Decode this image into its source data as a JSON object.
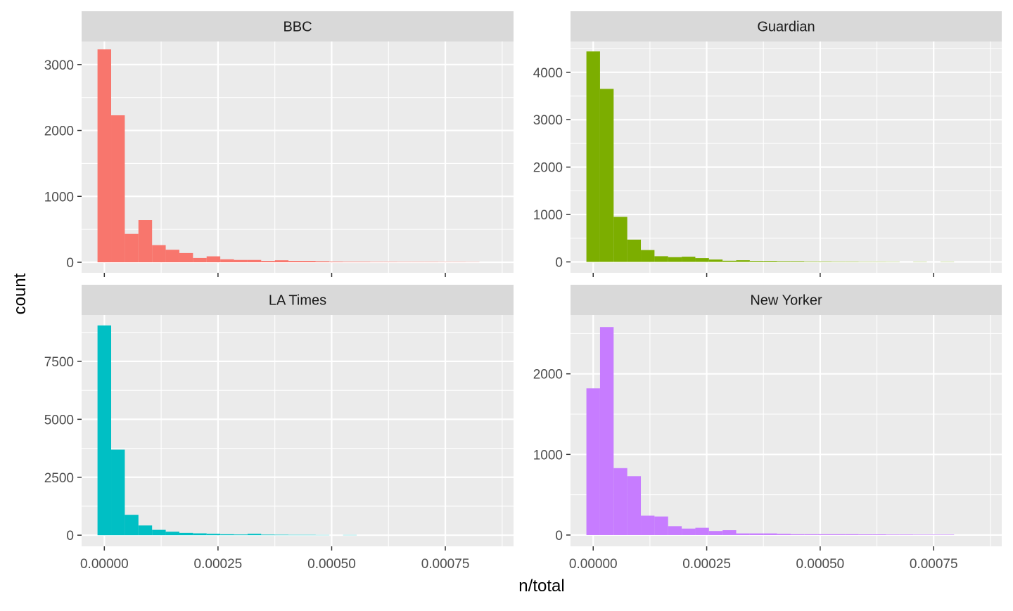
{
  "figure": {
    "xlabel": "n/total",
    "ylabel": "count"
  },
  "chart_data": {
    "type": "bar",
    "chart_kind": "faceted histogram",
    "facet_layout": "2x2",
    "background": "#EBEBEB",
    "strip_background": "#D9D9D9",
    "grid": true,
    "legend": "none",
    "xlabel": "n/total",
    "ylabel": "count",
    "xlim": [
      -5e-05,
      0.0009
    ],
    "x_ticks": [
      0,
      0.00025,
      0.0005,
      0.00075
    ],
    "x_tick_labels": [
      "0.00000",
      "0.00025",
      "0.00050",
      "0.00075"
    ],
    "bin_width": 3e-05,
    "bin_start": -1.5e-05,
    "facets": [
      {
        "name": "BBC",
        "color": "#F8766D",
        "ylim": [
          -160,
          3350
        ],
        "y_ticks": [
          0,
          1000,
          2000,
          3000
        ],
        "y_tick_labels": [
          "0",
          "1000",
          "2000",
          "3000"
        ],
        "counts": [
          3230,
          2230,
          430,
          640,
          260,
          190,
          140,
          65,
          90,
          45,
          35,
          35,
          20,
          30,
          20,
          20,
          15,
          10,
          8,
          8,
          6,
          6,
          5,
          5,
          5,
          4,
          4,
          3
        ]
      },
      {
        "name": "Guardian",
        "color": "#7CAE00",
        "ylim": [
          -230,
          4650
        ],
        "y_ticks": [
          0,
          1000,
          2000,
          3000,
          4000
        ],
        "y_tick_labels": [
          "0",
          "1000",
          "2000",
          "3000",
          "4000"
        ],
        "counts": [
          4440,
          3650,
          950,
          470,
          250,
          120,
          100,
          110,
          80,
          50,
          25,
          35,
          20,
          20,
          15,
          15,
          10,
          10,
          8,
          8,
          6,
          6,
          5,
          0,
          5,
          0,
          5
        ]
      },
      {
        "name": "LA Times",
        "color": "#00BFC4",
        "ylim": [
          -480,
          9500
        ],
        "y_ticks": [
          0,
          2500,
          5000,
          7500
        ],
        "y_tick_labels": [
          "0",
          "2500",
          "5000",
          "7500"
        ],
        "counts": [
          9050,
          3690,
          880,
          420,
          230,
          150,
          100,
          80,
          60,
          40,
          30,
          60,
          25,
          20,
          15,
          15,
          10,
          0,
          10
        ]
      },
      {
        "name": "New Yorker",
        "color": "#C77CFF",
        "ylim": [
          -140,
          2730
        ],
        "y_ticks": [
          0,
          1000,
          2000
        ],
        "y_tick_labels": [
          "0",
          "1000",
          "2000"
        ],
        "counts": [
          1820,
          2580,
          830,
          730,
          240,
          230,
          110,
          80,
          90,
          50,
          60,
          20,
          20,
          20,
          15,
          10,
          10,
          10,
          10,
          10,
          8,
          8,
          6,
          6,
          5,
          5,
          5
        ]
      }
    ]
  }
}
